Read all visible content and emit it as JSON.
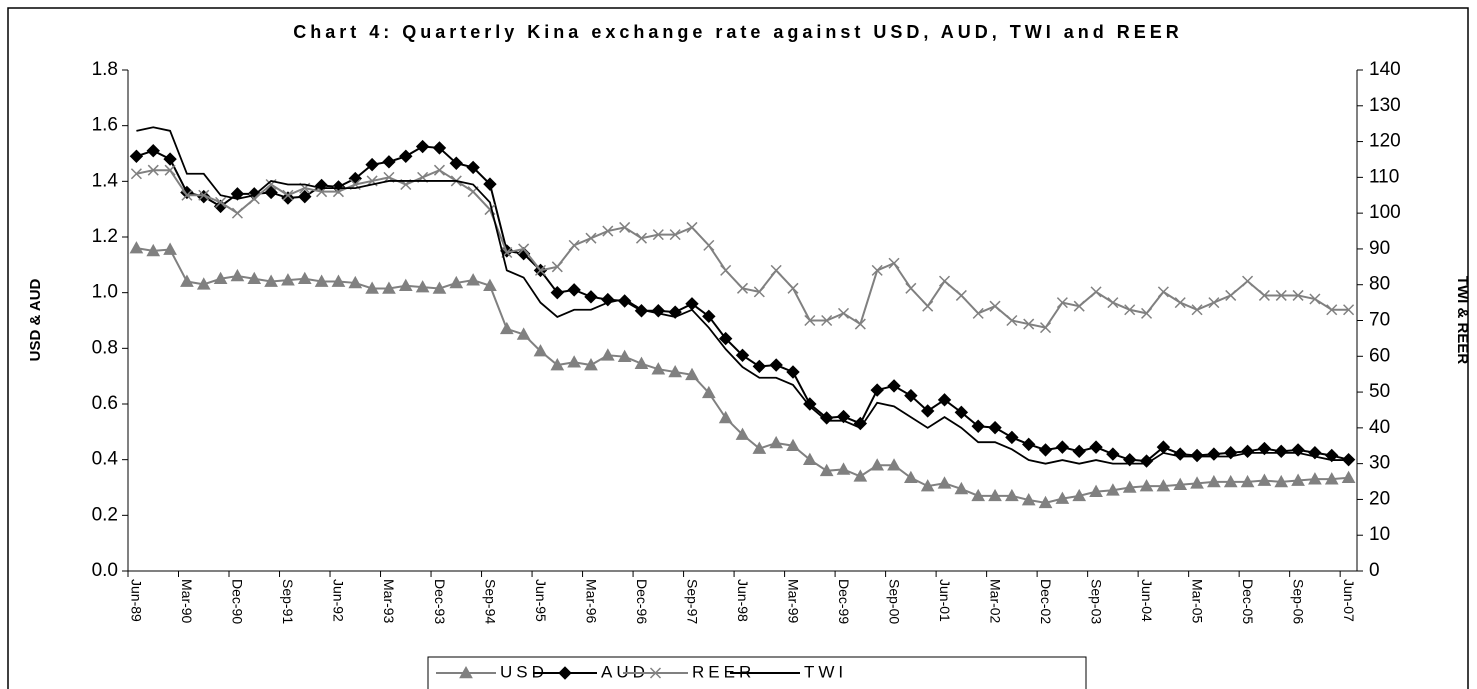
{
  "chart_data": {
    "type": "line",
    "title": "Chart 4: Quarterly Kina exchange rate against USD, AUD, TWI and REER",
    "y_label": "USD & AUD",
    "y2_label": "TWI & REER",
    "categories": [
      "Jun-89",
      null,
      null,
      "Mar-90",
      null,
      null,
      "Dec-90",
      null,
      null,
      "Sep-91",
      null,
      null,
      "Jun-92",
      null,
      null,
      "Mar-93",
      null,
      null,
      "Dec-93",
      null,
      null,
      "Sep-94",
      null,
      null,
      "Jun-95",
      null,
      null,
      "Mar-96",
      null,
      null,
      "Dec-96",
      null,
      null,
      "Sep-97",
      null,
      null,
      "Jun-98",
      null,
      null,
      "Mar-99",
      null,
      null,
      "Dec-99",
      null,
      null,
      "Sep-00",
      null,
      null,
      "Jun-01",
      null,
      null,
      "Mar-02",
      null,
      null,
      "Dec-02",
      null,
      null,
      "Sep-03",
      null,
      null,
      "Jun-04",
      null,
      null,
      "Mar-05",
      null,
      null,
      "Dec-05",
      null,
      null,
      "Sep-06",
      null,
      null,
      "Jun-07"
    ],
    "series": [
      {
        "name": "USD",
        "color": "#808080",
        "marker": "triangle",
        "values": [
          1.16,
          1.15,
          1.155,
          1.04,
          1.03,
          1.05,
          1.06,
          1.05,
          1.04,
          1.045,
          1.05,
          1.04,
          1.04,
          1.035,
          1.015,
          1.015,
          1.025,
          1.02,
          1.015,
          1.035,
          1.045,
          1.025,
          0.87,
          0.85,
          0.79,
          0.74,
          0.75,
          0.74,
          0.775,
          0.77,
          0.745,
          0.725,
          0.715,
          0.705,
          0.64,
          0.55,
          0.49,
          0.44,
          0.46,
          0.45,
          0.4,
          0.36,
          0.365,
          0.34,
          0.38,
          0.38,
          0.335,
          0.305,
          0.315,
          0.295,
          0.27,
          0.27,
          0.27,
          0.255,
          0.245,
          0.26,
          0.27,
          0.285,
          0.29,
          0.3,
          0.305,
          0.305,
          0.31,
          0.315,
          0.32,
          0.32,
          0.32,
          0.325,
          0.32,
          0.325,
          0.33,
          0.33,
          0.335
        ]
      },
      {
        "name": "AUD",
        "color": "#000000",
        "marker": "diamond",
        "values": [
          1.49,
          1.51,
          1.48,
          1.36,
          1.345,
          1.31,
          1.355,
          1.355,
          1.36,
          1.34,
          1.345,
          1.385,
          1.38,
          1.41,
          1.46,
          1.47,
          1.49,
          1.525,
          1.52,
          1.465,
          1.45,
          1.39,
          1.15,
          1.14,
          1.08,
          1.0,
          1.01,
          0.985,
          0.975,
          0.97,
          0.935,
          0.935,
          0.93,
          0.96,
          0.915,
          0.835,
          0.775,
          0.735,
          0.74,
          0.715,
          0.6,
          0.55,
          0.555,
          0.53,
          0.65,
          0.665,
          0.63,
          0.575,
          0.615,
          0.57,
          0.52,
          0.515,
          0.48,
          0.455,
          0.435,
          0.445,
          0.43,
          0.445,
          0.42,
          0.4,
          0.395,
          0.445,
          0.42,
          0.415,
          0.42,
          0.425,
          0.43,
          0.44,
          0.43,
          0.435,
          0.425,
          0.415,
          0.4
        ]
      },
      {
        "name": "REER",
        "color": "#808080",
        "marker": "cross",
        "axis": "y2",
        "values": [
          111,
          112,
          112,
          105,
          105,
          103,
          100,
          104,
          108,
          105,
          107,
          106,
          106,
          108,
          109,
          110,
          108,
          110,
          112,
          109,
          106,
          101,
          89,
          90,
          84,
          85,
          91,
          93,
          95,
          96,
          93,
          94,
          94,
          96,
          91,
          84,
          79,
          78,
          84,
          79,
          70,
          70,
          72,
          69,
          84,
          86,
          79,
          74,
          81,
          77,
          72,
          74,
          70,
          69,
          68,
          75,
          74,
          78,
          75,
          73,
          72,
          78,
          75,
          73,
          75,
          77,
          81,
          77,
          77,
          77,
          76,
          73,
          73
        ]
      },
      {
        "name": "TWI",
        "color": "#000000",
        "marker": "none",
        "axis": "y2",
        "values": [
          123,
          124,
          123,
          111,
          111,
          105,
          104,
          105,
          109,
          108,
          108,
          107,
          107,
          107,
          108,
          109,
          109,
          109,
          109,
          109,
          108,
          103,
          84,
          82,
          75,
          71,
          73,
          73,
          75,
          76,
          73,
          72,
          71,
          73,
          68,
          62,
          57,
          54,
          54,
          52,
          46,
          42,
          42,
          40,
          47,
          46,
          43,
          40,
          43,
          40,
          36,
          36,
          34,
          31,
          30,
          31,
          30,
          31,
          30,
          30,
          30,
          33,
          32,
          32,
          32,
          32,
          33,
          33,
          33,
          33,
          32,
          31,
          31
        ]
      }
    ],
    "ylim": [
      0,
      1.8
    ],
    "yticks": [
      {
        "value": 0,
        "label": "0.0"
      },
      0.2,
      0.4,
      0.6,
      0.8,
      {
        "value": 1,
        "label": "1.0"
      },
      1.2,
      1.4,
      1.6,
      1.8
    ],
    "y2lim": [
      0,
      140
    ],
    "y2ticks": [
      0,
      10,
      20,
      30,
      40,
      50,
      60,
      70,
      80,
      90,
      100,
      110,
      120,
      130,
      140
    ],
    "grid": false,
    "legend": "bottom"
  }
}
